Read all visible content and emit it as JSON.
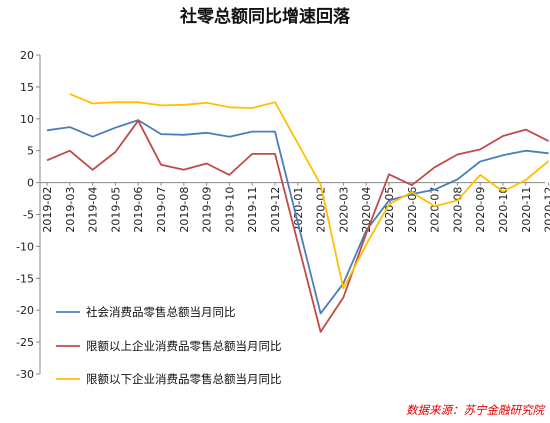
{
  "chart_data": {
    "type": "line",
    "title": "社零总额同比增速回落",
    "source": "数据来源：苏宁金融研究院",
    "ylim": [
      -30,
      20
    ],
    "yticks": [
      20,
      15,
      10,
      5,
      0,
      -5,
      -10,
      -15,
      -20,
      -25,
      -30
    ],
    "categories": [
      "2019-02",
      "2019-03",
      "2019-04",
      "2019-05",
      "2019-06",
      "2019-07",
      "2019-08",
      "2019-09",
      "2019-10",
      "2019-11",
      "2019-12",
      "2020-01",
      "2020-02",
      "2020-03",
      "2020-04",
      "2020-05",
      "2020-06",
      "2020-07",
      "2020-08",
      "2020-09",
      "2020-10",
      "2020-11",
      "2020-12"
    ],
    "legend_position": "bottom-left",
    "grid": false,
    "series": [
      {
        "name": "社会消费品零售总额当月同比",
        "color": "#4a7ebb",
        "values": [
          8.2,
          8.7,
          7.2,
          8.6,
          9.8,
          7.6,
          7.5,
          7.8,
          7.2,
          8.0,
          8.0,
          null,
          -20.5,
          -15.8,
          -7.5,
          -2.8,
          -1.8,
          -1.1,
          0.5,
          3.3,
          4.3,
          5.0,
          4.6
        ]
      },
      {
        "name": "限额以上企业消费品零售总额当月同比",
        "color": "#be4b48",
        "values": [
          3.5,
          5.0,
          2.0,
          4.8,
          9.7,
          2.8,
          2.0,
          3.0,
          1.2,
          4.5,
          4.5,
          null,
          -23.4,
          -18.0,
          -8.0,
          1.3,
          -0.4,
          2.4,
          4.4,
          5.2,
          7.3,
          8.3,
          6.5
        ]
      },
      {
        "name": "限额以下企业消费品零售总额当月同比",
        "color": "#ffc000",
        "values": [
          null,
          13.9,
          12.4,
          12.6,
          12.6,
          12.1,
          12.2,
          12.5,
          11.8,
          11.7,
          12.6,
          null,
          -0.3,
          -16.6,
          -9.7,
          -3.4,
          -1.5,
          -3.7,
          -2.8,
          1.2,
          -1.4,
          0.4,
          3.4
        ]
      }
    ]
  }
}
